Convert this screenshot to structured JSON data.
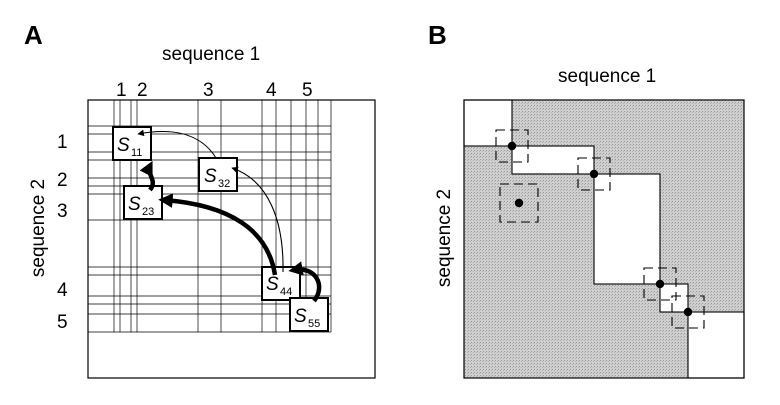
{
  "panel_a": {
    "letter": "A",
    "title_x": "sequence 1",
    "title_y": "sequence 2",
    "x_numbers": [
      "1",
      "2",
      "3",
      "4",
      "5"
    ],
    "y_numbers": [
      "1",
      "2",
      "3",
      "4",
      "5"
    ],
    "states": [
      {
        "id": "s11",
        "base": "S",
        "sub": "11"
      },
      {
        "id": "s32",
        "base": "S",
        "sub": "32"
      },
      {
        "id": "s23",
        "base": "S",
        "sub": "23"
      },
      {
        "id": "s44",
        "base": "S",
        "sub": "44"
      },
      {
        "id": "s55",
        "base": "S",
        "sub": "55"
      }
    ]
  },
  "panel_b": {
    "letter": "B",
    "title_x": "sequence 1",
    "title_y": "sequence 2"
  },
  "colors": {
    "ink": "#000000",
    "shade": "#c8c8c8",
    "background": "#ffffff"
  }
}
